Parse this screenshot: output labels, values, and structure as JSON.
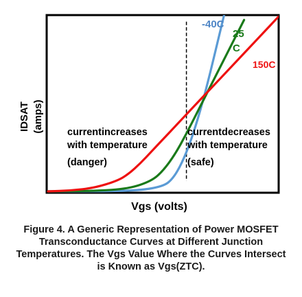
{
  "chart_data": {
    "type": "line",
    "xlabel": "Vgs (volts)",
    "ylabel": "IDSAT",
    "ylabel_unit": "(amps)",
    "xlim": [
      0,
      10
    ],
    "ylim": [
      0,
      10
    ],
    "grid": false,
    "series": [
      {
        "name": "-40C",
        "color": "#5b9bd5",
        "x": [
          0.0,
          2.0,
          4.0,
          5.0,
          5.4,
          5.8,
          6.2,
          6.6,
          7.0,
          7.4,
          7.8
        ],
        "y": [
          0.0,
          0.0,
          0.05,
          0.3,
          0.7,
          1.6,
          2.9,
          4.6,
          6.6,
          8.8,
          11.0
        ]
      },
      {
        "name": "25 C",
        "color": "#1a7a1a",
        "x": [
          0.0,
          2.0,
          3.5,
          4.5,
          5.0,
          5.5,
          6.0,
          6.5,
          7.0,
          7.5,
          8.0,
          8.5
        ],
        "y": [
          0.0,
          0.02,
          0.15,
          0.6,
          1.2,
          2.1,
          3.3,
          4.6,
          5.9,
          7.2,
          8.5,
          9.8
        ]
      },
      {
        "name": "150C",
        "color": "#ee1111",
        "x": [
          0.0,
          1.0,
          2.0,
          3.0,
          3.5,
          4.0,
          4.5,
          5.0,
          5.5,
          6.0,
          7.0,
          8.0,
          9.0,
          10.0
        ],
        "y": [
          0.0,
          0.05,
          0.2,
          0.6,
          1.0,
          1.6,
          2.3,
          3.0,
          3.7,
          4.4,
          5.8,
          7.2,
          8.6,
          10.0
        ]
      }
    ],
    "ztc_line_x": 6.0,
    "annotations": {
      "left_line1": "currentincreases",
      "left_line2": "with temperature",
      "left_line3": "(danger)",
      "right_line1": "currentdecreases",
      "right_line2": "with temperature",
      "right_line3": "(safe)"
    },
    "series_labels": {
      "cold": "-40C",
      "room_line1": "25",
      "room_line2": "C",
      "hot": "150C"
    }
  },
  "caption": "Figure 4. A Generic Representation of Power MOSFET Transconductance Curves at Different Junction Temperatures. The Vgs Value Where the Curves Intersect is Known as Vgs(ZTC)."
}
